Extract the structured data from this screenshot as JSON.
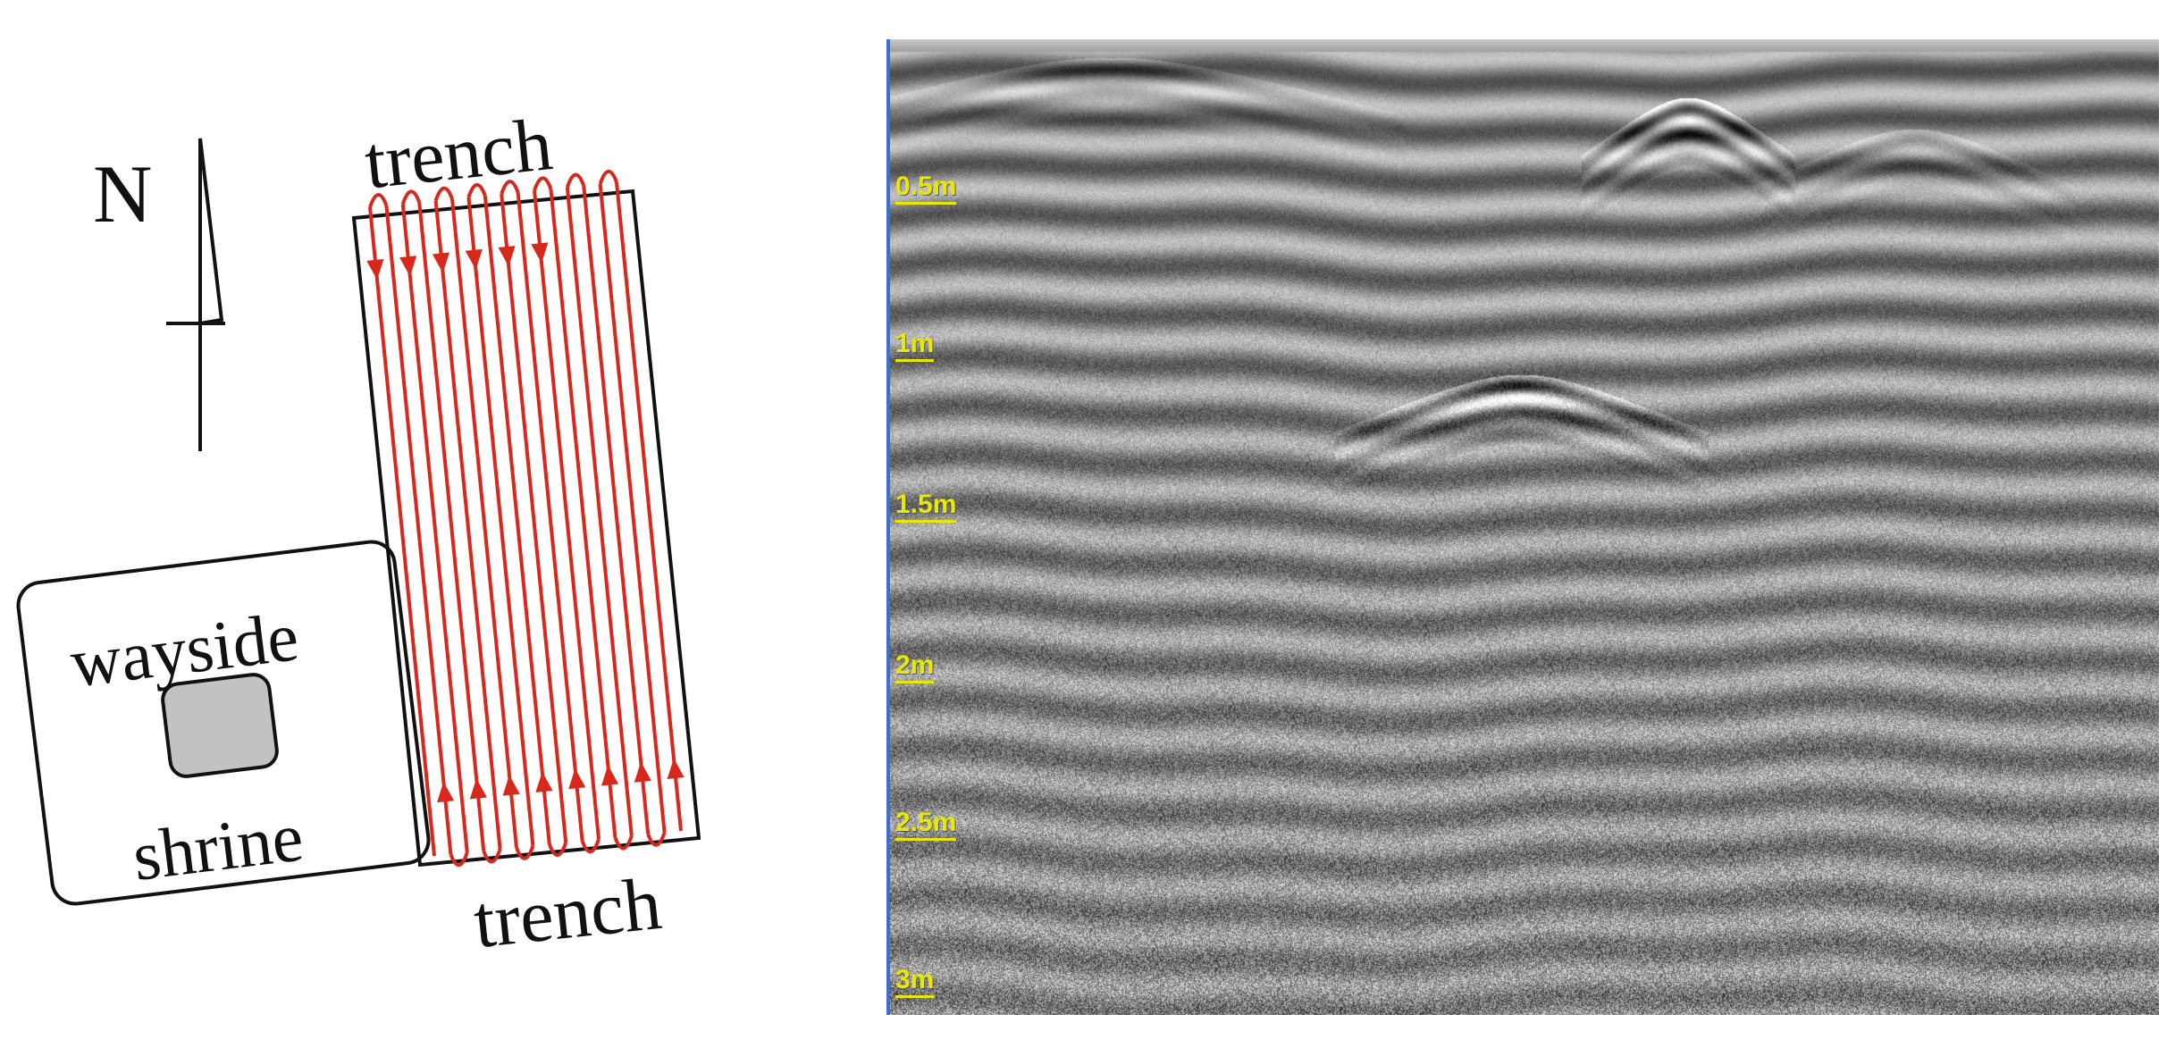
{
  "sketch": {
    "north_label": "N",
    "trench_top_label": "trench",
    "trench_bottom_label": "trench",
    "wayside_label": "wayside",
    "shrine_label": "shrine",
    "profile_line_color": "#d8281c",
    "shrine_fill": "#c0c3c2"
  },
  "radargram": {
    "axis_color": "#3b6fd6",
    "label_color": "#e8e800",
    "depth_labels": [
      "0.5m",
      "1m",
      "1.5m",
      "2m",
      "2.5m",
      "3m"
    ]
  }
}
